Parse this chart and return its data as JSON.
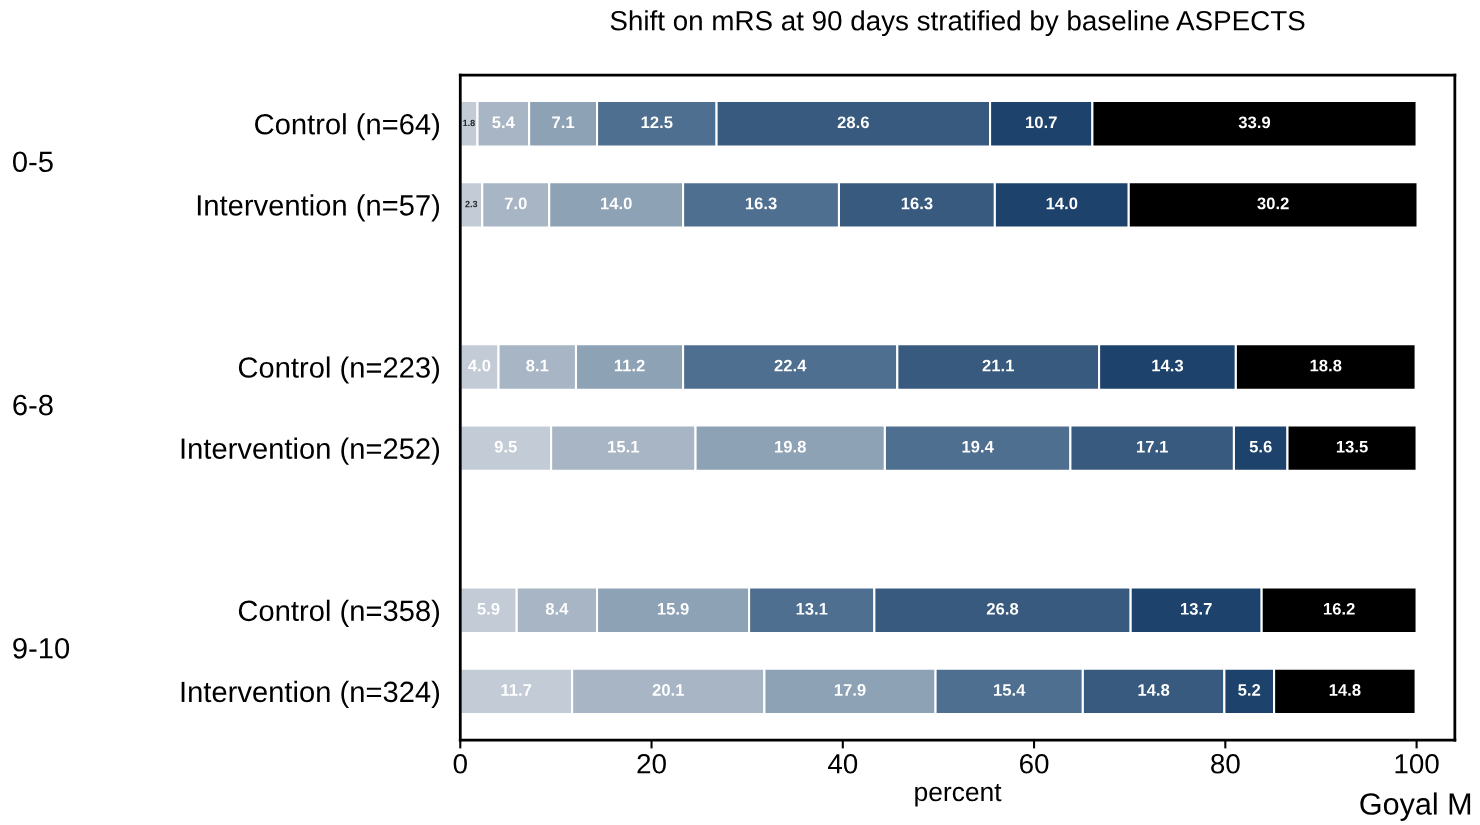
{
  "chart_data": {
    "type": "bar",
    "orientation": "horizontal",
    "stacked": true,
    "title": "Shift on mRS at 90 days stratified by baseline ASPECTS",
    "xlabel": "percent",
    "categories": [
      "Control (n=64)",
      "Intervention (n=57)",
      null,
      "Control (n=223)",
      "Intervention (n=252)",
      null,
      "Control (n=358)",
      "Intervention (n=324)"
    ],
    "series": [
      {
        "color": "#c3ccd6",
        "values": [
          1.8,
          2.3,
          null,
          4.0,
          9.5,
          null,
          5.9,
          11.7
        ],
        "value_labels": [
          "1.8",
          "2.3",
          null,
          "4.0",
          "9.5",
          null,
          "5.9",
          "11.7"
        ]
      },
      {
        "color": "#a7b5c4",
        "values": [
          5.4,
          7.0,
          null,
          8.1,
          15.1,
          null,
          8.4,
          20.1
        ],
        "value_labels": [
          "5.4",
          "7.0",
          null,
          "8.1",
          "15.1",
          null,
          "8.4",
          "20.1"
        ]
      },
      {
        "color": "#8ea2b6",
        "values": [
          7.1,
          14.0,
          null,
          11.2,
          19.8,
          null,
          15.9,
          17.9
        ],
        "value_labels": [
          "7.1",
          "14.0",
          null,
          "11.2",
          "19.8",
          null,
          "15.9",
          "17.9"
        ]
      },
      {
        "color": "#4f6f90",
        "values": [
          12.5,
          16.3,
          null,
          22.4,
          19.4,
          null,
          13.1,
          15.4
        ],
        "value_labels": [
          "12.5",
          "16.3",
          null,
          "22.4",
          "19.4",
          null,
          "13.1",
          "15.4"
        ]
      },
      {
        "color": "#385a7e",
        "values": [
          28.6,
          16.3,
          null,
          21.1,
          17.1,
          null,
          26.8,
          14.8
        ],
        "value_labels": [
          "28.6",
          "16.3",
          null,
          "21.1",
          "17.1",
          null,
          "26.8",
          "14.8"
        ]
      },
      {
        "color": "#1d426b",
        "values": [
          10.7,
          14.0,
          null,
          14.3,
          5.6,
          null,
          13.7,
          5.2
        ],
        "value_labels": [
          "10.7",
          "14.0",
          null,
          "14.3",
          "5.6",
          null,
          "13.7",
          "5.2"
        ]
      },
      {
        "color": "#000000",
        "values": [
          33.9,
          30.2,
          null,
          18.8,
          13.5,
          null,
          16.2,
          14.8
        ],
        "value_labels": [
          "33.9",
          "30.2",
          null,
          "18.8",
          "13.5",
          null,
          "16.2",
          "14.8"
        ]
      }
    ],
    "xlim": [
      0,
      104
    ],
    "xticks": [
      0,
      20,
      40,
      60,
      80,
      100
    ],
    "grid": false,
    "legend": false,
    "annotations": [
      "0-5",
      "6-8",
      "9-10",
      "Goyal M"
    ]
  }
}
